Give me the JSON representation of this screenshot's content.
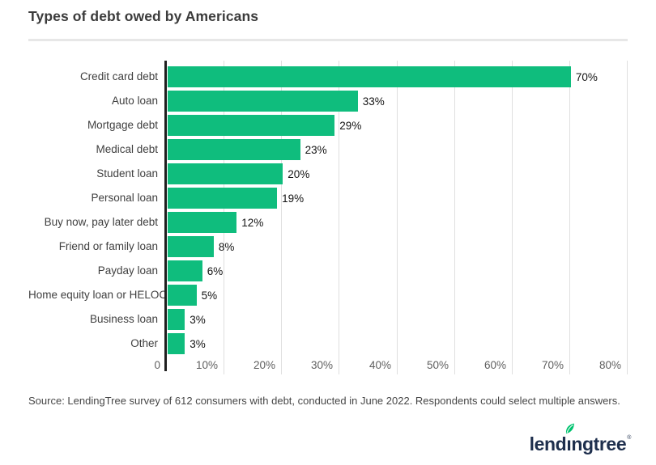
{
  "title": "Types of debt owed by Americans",
  "source": "Source: LendingTree survey of 612 consumers with debt, conducted in June 2022. Respondents could select multiple answers.",
  "logo": {
    "pre": "lend",
    "i": "ı",
    "post": "ngtree",
    "reg": "®",
    "navy": "#1e2f4d",
    "leaf_green": "#00c36f"
  },
  "colors": {
    "bar": "#0fbd7d",
    "axis_line": "#1f1f1f",
    "gridline": "#dfdfdf",
    "title_text": "#3b3b3b",
    "category_text": "#3f3f3f",
    "value_text": "#141414",
    "tick_text": "#5f5f5f",
    "divider": "#e7e7e7",
    "background": "#ffffff"
  },
  "chart_data": {
    "type": "bar",
    "orientation": "horizontal",
    "title": "Types of debt owed by Americans",
    "categories": [
      "Credit card debt",
      "Auto loan",
      "Mortgage debt",
      "Medical debt",
      "Student loan",
      "Personal loan",
      "Buy now, pay later debt",
      "Friend or family loan",
      "Payday loan",
      "Home equity loan or HELOC",
      "Business loan",
      "Other"
    ],
    "values": [
      70,
      33,
      29,
      23,
      20,
      19,
      12,
      8,
      6,
      5,
      3,
      3
    ],
    "value_labels": [
      "70%",
      "33%",
      "29%",
      "23%",
      "20%",
      "19%",
      "12%",
      "8%",
      "6%",
      "5%",
      "3%",
      "3%"
    ],
    "xlabel": "",
    "ylabel": "",
    "xlim": [
      0,
      80
    ],
    "x_ticks": [
      "0",
      "10%",
      "20%",
      "30%",
      "40%",
      "50%",
      "60%",
      "70%",
      "80%"
    ],
    "grid": true,
    "legend": false
  }
}
